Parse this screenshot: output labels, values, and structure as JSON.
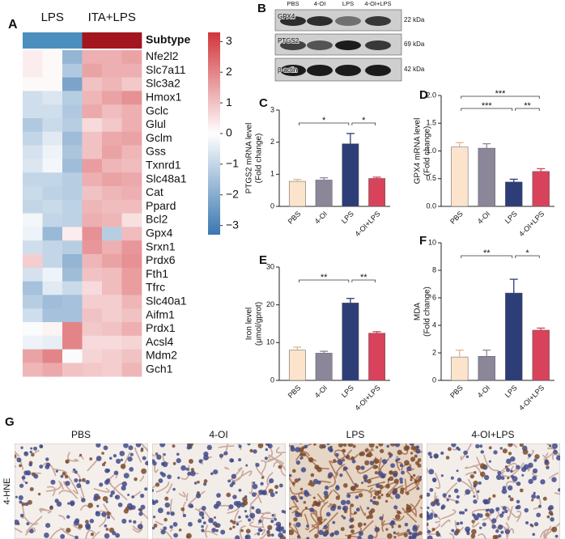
{
  "chart_data": [
    {
      "type": "heatmap",
      "panel_label": "A",
      "groups": [
        "LPS",
        "ITA+LPS"
      ],
      "annotation": {
        "label": "Subtype",
        "colors": [
          "#4a8fbd",
          "#4a8fbd",
          "#4a8fbd",
          "#a3161f",
          "#a3161f",
          "#a3161f"
        ]
      },
      "rows": [
        "Nfe2l2",
        "Slc7a11",
        "Slc3a2",
        "Hmox1",
        "Gclc",
        "Glul",
        "Gclm",
        "Gss",
        "Txnrd1",
        "Slc48a1",
        "Cat",
        "Ppard",
        "Bcl2",
        "Gpx4",
        "Srxn1",
        "Prdx6",
        "Fth1",
        "Tfrc",
        "Slc40a1",
        "Aifm1",
        "Prdx1",
        "Acsl4",
        "Mdm2",
        "Gch1"
      ],
      "values": [
        [
          0.3,
          0.1,
          -1.8,
          1.3,
          1.3,
          1.5
        ],
        [
          0.3,
          0.1,
          -1.3,
          1.5,
          1.3,
          1.3
        ],
        [
          0.1,
          0.1,
          -2.2,
          1.0,
          1.2,
          0.9
        ],
        [
          -0.8,
          -0.6,
          -1.2,
          1.2,
          1.5,
          1.8
        ],
        [
          -0.8,
          -0.8,
          -1.3,
          1.4,
          1.1,
          1.3
        ],
        [
          -1.3,
          -0.9,
          -1.2,
          0.6,
          0.9,
          1.3
        ],
        [
          -1.0,
          -0.5,
          -1.6,
          1.0,
          1.4,
          1.5
        ],
        [
          -0.7,
          -0.3,
          -1.4,
          1.0,
          1.5,
          1.2
        ],
        [
          -0.6,
          -0.2,
          -1.6,
          1.6,
          1.2,
          1.1
        ],
        [
          -1.0,
          -1.0,
          -1.2,
          1.3,
          1.5,
          1.4
        ],
        [
          -0.9,
          -1.1,
          -1.2,
          1.0,
          1.2,
          1.3
        ],
        [
          -1.0,
          -0.9,
          -1.1,
          1.2,
          1.1,
          1.1
        ],
        [
          -0.2,
          -1.0,
          -1.1,
          1.3,
          1.2,
          0.5
        ],
        [
          -0.3,
          -1.7,
          0.3,
          1.8,
          -1.2,
          1.1
        ],
        [
          -0.8,
          -1.0,
          -1.2,
          1.7,
          1.3,
          1.7
        ],
        [
          0.8,
          -1.0,
          -1.8,
          1.2,
          1.5,
          1.8
        ],
        [
          -0.7,
          -0.3,
          -1.6,
          1.0,
          1.1,
          1.6
        ],
        [
          -1.5,
          -0.5,
          -0.9,
          0.6,
          1.1,
          1.6
        ],
        [
          -1.2,
          -1.6,
          -1.5,
          0.8,
          0.8,
          1.2
        ],
        [
          -0.8,
          -1.5,
          -1.5,
          1.0,
          0.8,
          1.0
        ],
        [
          -0.1,
          0.2,
          2.0,
          0.9,
          1.0,
          1.3
        ],
        [
          -0.3,
          -0.4,
          2.0,
          0.6,
          0.6,
          0.7
        ],
        [
          1.5,
          2.0,
          -0.1,
          0.7,
          0.8,
          1.0
        ],
        [
          1.2,
          1.4,
          1.0,
          0.9,
          0.8,
          1.2
        ]
      ],
      "color_scale": [
        "#3a77b0",
        "#ffffff",
        "#d1353a"
      ],
      "color_lim": [
        -3.3,
        3.3
      ],
      "colorbar_ticks": [
        3,
        2,
        1,
        0,
        {
          "value": -1,
          "label": "−1"
        },
        {
          "value": -2,
          "label": "−2"
        },
        {
          "value": -3,
          "label": "−3"
        }
      ]
    },
    {
      "type": "bar",
      "panel_label": "C",
      "categories": [
        "PBS",
        "4-OI",
        "LPS",
        "4-OI+LPS"
      ],
      "colors": [
        "#fbe3cc",
        "#8b8799",
        "#2c3d78",
        "#d8435b"
      ],
      "values": [
        0.78,
        0.82,
        1.95,
        0.87
      ],
      "errors": [
        0.06,
        0.07,
        0.32,
        0.04
      ],
      "ylabel": [
        "PTGS2 mRNA level",
        "(Fold change)"
      ],
      "ylim": [
        0,
        3
      ],
      "yticks": [
        0,
        1,
        2,
        3
      ],
      "significance": [
        {
          "from": 0,
          "to": 2,
          "label": "*"
        },
        {
          "from": 2,
          "to": 3,
          "label": "*"
        }
      ]
    },
    {
      "type": "bar",
      "panel_label": "D",
      "categories": [
        "PBS",
        "4-OI",
        "LPS",
        "4-OI+LPS"
      ],
      "colors": [
        "#fbe3cc",
        "#8b8799",
        "#2c3d78",
        "#d8435b"
      ],
      "values": [
        1.07,
        1.05,
        0.44,
        0.63
      ],
      "errors": [
        0.08,
        0.08,
        0.05,
        0.05
      ],
      "ylabel": [
        "GPX4 mRNA level",
        "(Fold change)"
      ],
      "ylim": [
        0,
        2
      ],
      "yticks": [
        {
          "value": 0,
          "label": "0.0"
        },
        0.5,
        {
          "value": 1,
          "label": "1.0"
        },
        1.5,
        {
          "value": 2,
          "label": "2.0"
        }
      ],
      "significance": [
        {
          "from": 0,
          "to": 3,
          "label": "***"
        },
        {
          "from": 0,
          "to": 2,
          "label": "***"
        },
        {
          "from": 2,
          "to": 3,
          "label": "**"
        }
      ]
    },
    {
      "type": "bar",
      "panel_label": "E",
      "categories": [
        "PBS",
        "4-OI",
        "LPS",
        "4-OI+LPS"
      ],
      "colors": [
        "#fbe3cc",
        "#8b8799",
        "#2c3d78",
        "#d8435b"
      ],
      "values": [
        8,
        7.2,
        20.5,
        12.5
      ],
      "errors": [
        0.8,
        0.5,
        1.2,
        0.4
      ],
      "ylabel": [
        "Iron level",
        "(μmol/gprot)"
      ],
      "ylim": [
        0,
        30
      ],
      "yticks": [
        0,
        10,
        20,
        30
      ],
      "significance": [
        {
          "from": 0,
          "to": 2,
          "label": "**"
        },
        {
          "from": 2,
          "to": 3,
          "label": "**"
        }
      ]
    },
    {
      "type": "bar",
      "panel_label": "F",
      "categories": [
        "PBS",
        "4-OI",
        "LPS",
        "4-OI+LPS"
      ],
      "colors": [
        "#fbe3cc",
        "#8b8799",
        "#2c3d78",
        "#d8435b"
      ],
      "values": [
        1.7,
        1.75,
        6.35,
        3.65
      ],
      "errors": [
        0.5,
        0.45,
        1.0,
        0.15
      ],
      "ylabel": [
        "MDA",
        "(Fold change)"
      ],
      "ylim": [
        0,
        10
      ],
      "yticks": [
        0,
        2,
        4,
        6,
        8,
        10
      ],
      "significance": [
        {
          "from": 0,
          "to": 2,
          "label": "**"
        },
        {
          "from": 2,
          "to": 3,
          "label": "*"
        }
      ]
    }
  ],
  "blot": {
    "panel_label": "B",
    "lanes": [
      "PBS",
      "4-OI",
      "LPS",
      "4-OI+LPS"
    ],
    "rows": [
      {
        "protein": "GPX4",
        "size": "22 kDa"
      },
      {
        "protein": "PTGS2",
        "size": "69 kDa"
      },
      {
        "protein": "β-actin",
        "size": "42 kDa"
      }
    ]
  },
  "histology": {
    "panel_label": "G",
    "stain": "4-HNE",
    "groups": [
      "PBS",
      "4-OI",
      "LPS",
      "4-OI+LPS"
    ]
  }
}
